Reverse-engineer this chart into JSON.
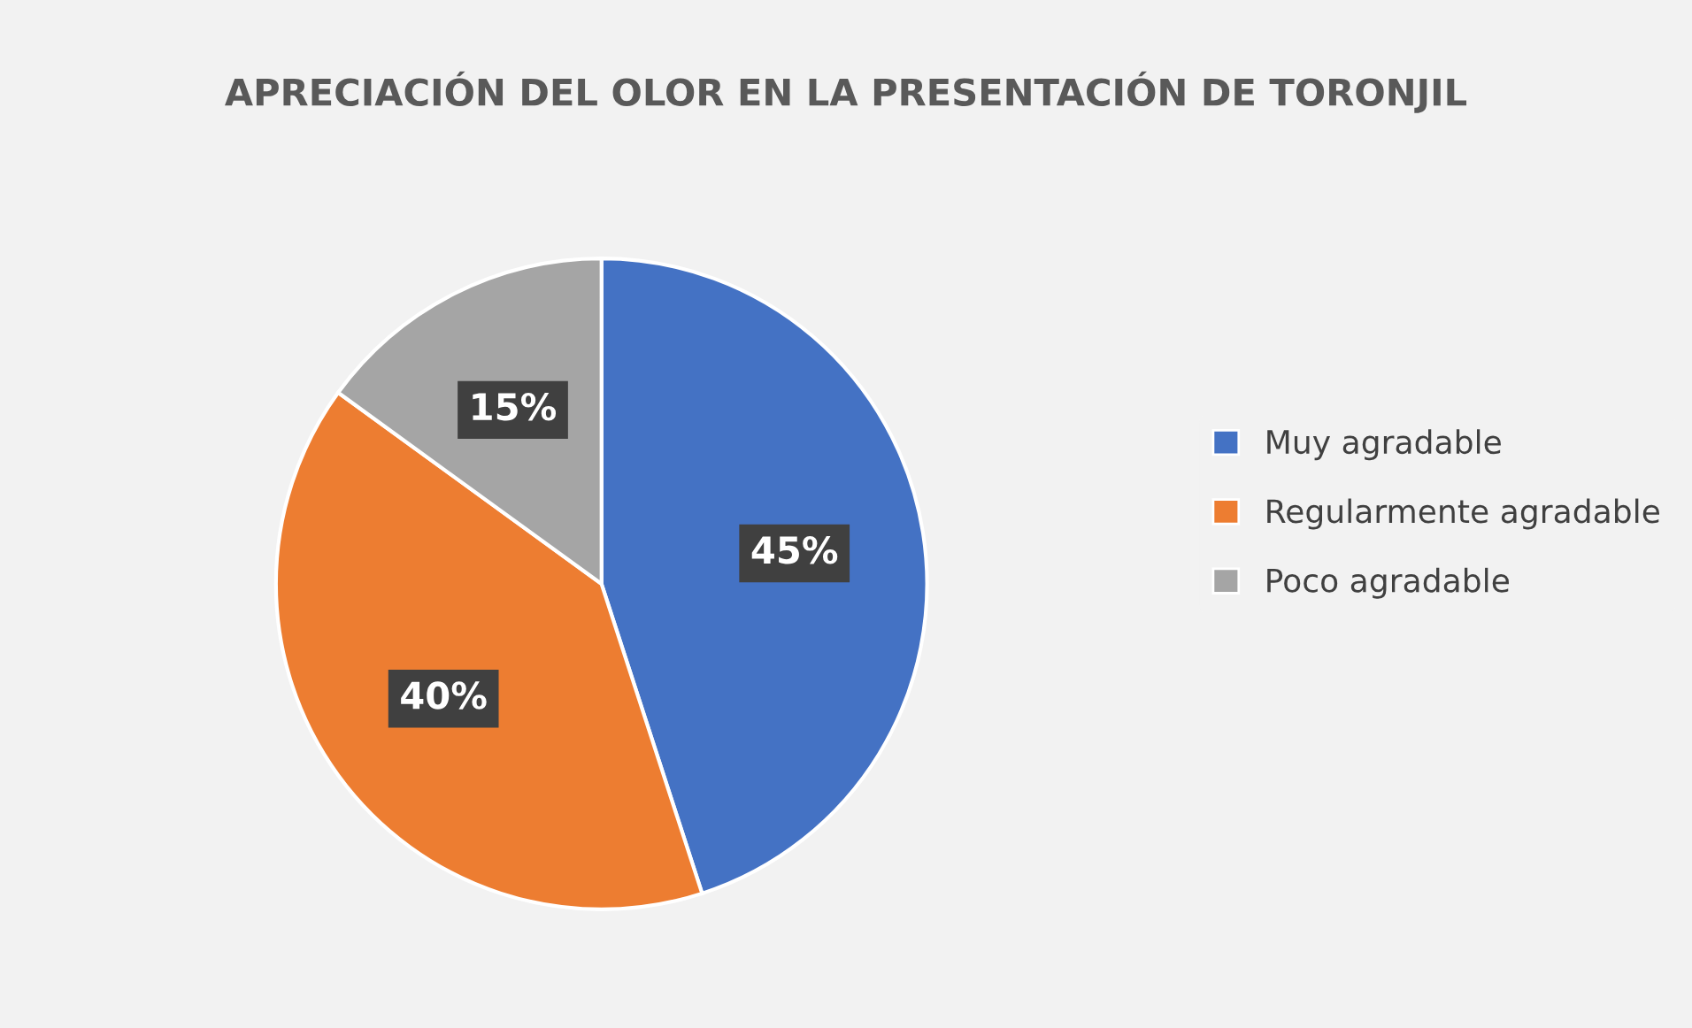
{
  "chart_data": {
    "type": "pie",
    "title": "APRECIACIÓN DEL OLOR EN LA PRESENTACIÓN DE TORONJIL",
    "categories": [
      "Muy agradable",
      "Regularmente agradable",
      "Poco agradable"
    ],
    "values": [
      45,
      40,
      15
    ],
    "colors": [
      "#4472c4",
      "#ed7d31",
      "#a5a5a5"
    ],
    "value_labels": [
      "45%",
      "40%",
      "15%"
    ],
    "legend": "right"
  }
}
